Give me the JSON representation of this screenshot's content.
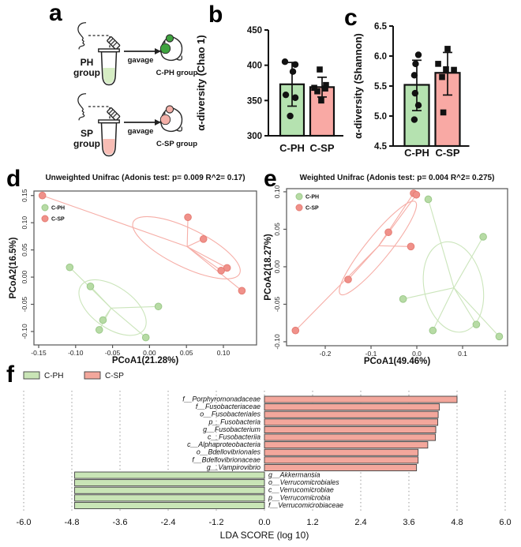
{
  "panels": {
    "a": {
      "label": "a",
      "rows": [
        {
          "sample": "PH",
          "sample_sub": "group",
          "arrow_label": "gavage",
          "result_label": "C-PH group",
          "liquid_color": "#d6edc4",
          "accent_color": "#3fa33f"
        },
        {
          "sample": "SP",
          "sample_sub": "group",
          "arrow_label": "gavage",
          "result_label": "C-SP group",
          "liquid_color": "#f8bdb5",
          "accent_color": "#f3b0a8"
        }
      ]
    },
    "b": {
      "label": "b"
    },
    "c": {
      "label": "c"
    },
    "d": {
      "label": "d"
    },
    "e": {
      "label": "e"
    },
    "f": {
      "label": "f"
    }
  },
  "chart_data": [
    {
      "panel": "b",
      "type": "bar",
      "title": "",
      "ylabel": "α-diversity (Chao 1)",
      "categories": [
        "C-PH",
        "C-SP"
      ],
      "ylim": [
        300,
        450
      ],
      "yticks": [
        "300",
        "350",
        "400",
        "450"
      ],
      "series": [
        {
          "name": "C-PH",
          "mean": 373,
          "err": [
            342,
            404
          ],
          "marker": "circle",
          "color": "#b5e2b0",
          "points": [
            405,
            401,
            391,
            358,
            354,
            328
          ],
          "jitter": [
            -0.6,
            0.27,
            0.07,
            -0.53,
            0.27,
            -0.16
          ]
        },
        {
          "name": "C-SP",
          "mean": 369,
          "err": [
            355,
            383
          ],
          "marker": "square",
          "color": "#f9a9a4",
          "points": [
            394,
            372,
            368,
            367,
            363,
            350
          ],
          "jitter": [
            -0.2,
            0.33,
            -0.66,
            0.27,
            -0.4,
            -0.07
          ]
        }
      ]
    },
    {
      "panel": "c",
      "type": "bar",
      "title": "",
      "ylabel": "α-diversity (Shannon)",
      "categories": [
        "C-PH",
        "C-SP"
      ],
      "ylim": [
        4.5,
        6.5
      ],
      "yticks": [
        "4.5",
        "5.0",
        "5.5",
        "6.0",
        "6.5"
      ],
      "series": [
        {
          "name": "C-PH",
          "mean": 5.52,
          "err": [
            5.09,
            5.93
          ],
          "marker": "circle",
          "color": "#b5e2b0",
          "points": [
            6.02,
            5.87,
            5.68,
            5.38,
            5.18,
            4.94
          ],
          "jitter": [
            0.13,
            -0.1,
            -0.2,
            -0.14,
            0.13,
            -0.2
          ]
        },
        {
          "name": "C-SP",
          "mean": 5.72,
          "err": [
            5.35,
            6.06
          ],
          "marker": "square",
          "color": "#f9a9a4",
          "points": [
            6.12,
            5.87,
            5.78,
            5.77,
            5.65,
            5.06
          ],
          "jitter": [
            0,
            -0.77,
            -0.13,
            0.52,
            -0.45,
            -0.35
          ]
        }
      ]
    },
    {
      "panel": "d",
      "type": "scatter",
      "title": "Unweighted Unifrac (Adonis test: p= 0.009  R^2= 0.17)",
      "xlabel": "PCoA1(21.28%)",
      "ylabel": "PCoA2(16.5%)",
      "xlim": [
        -0.1564,
        0.145
      ],
      "ylim": [
        -0.1247,
        0.158
      ],
      "xticks": [
        "-0.15",
        "-0.10",
        "-0.05",
        "0.00",
        "0.05",
        "0.10"
      ],
      "yticks": [
        "-0.10",
        "-0.05",
        "0.00",
        "0.05",
        "0.10",
        "0.15"
      ],
      "legend_position": "top-left",
      "groups": [
        {
          "name": "C-PH",
          "color": "#b7dba5",
          "stroke": "#9cc98a",
          "line_color": "#cbe5bb",
          "points": [
            [
              -0.108,
              0.018
            ],
            [
              -0.08,
              -0.017
            ],
            [
              0.012,
              -0.054
            ],
            [
              -0.063,
              -0.079
            ],
            [
              -0.068,
              -0.097
            ],
            [
              -0.005,
              -0.111
            ]
          ],
          "centroid": [
            -0.052,
            -0.057
          ],
          "ellipse": {
            "cx": -0.05,
            "cy": -0.056,
            "rx": 0.052,
            "ry": 0.028,
            "angle": 35
          }
        },
        {
          "name": "C-SP",
          "color": "#f0918a",
          "stroke": "#e57d74",
          "line_color": "#f6aea7",
          "points": [
            [
              -0.145,
              0.15
            ],
            [
              0.052,
              0.11
            ],
            [
              0.073,
              0.07
            ],
            [
              0.105,
              0.017
            ],
            [
              0.097,
              0.012
            ],
            [
              0.125,
              -0.025
            ]
          ],
          "centroid": [
            0.051,
            0.056
          ],
          "ellipse": {
            "cx": 0.05,
            "cy": 0.054,
            "rx": 0.08,
            "ry": 0.026,
            "angle": 26
          }
        }
      ]
    },
    {
      "panel": "e",
      "type": "scatter",
      "title": "Weighted Unifrac (Adonis test: p= 0.004  R^2= 0.275)",
      "xlabel": "PCoA1(49.46%)",
      "ylabel": "PCoA2(18.27%)",
      "xlim": [
        -0.2845,
        0.198
      ],
      "ylim": [
        -0.1053,
        0.1042
      ],
      "xticks": [
        "-0.2",
        "-0.1",
        "0.0",
        "0.1"
      ],
      "yticks": [
        "-0.10",
        "-0.05",
        "0.00",
        "0.05",
        "0.10"
      ],
      "legend_position": "top-left",
      "groups": [
        {
          "name": "C-PH",
          "color": "#b7dba5",
          "stroke": "#9cc98a",
          "line_color": "#cbe5bb",
          "points": [
            [
              0.025,
              0.09
            ],
            [
              0.145,
              0.04
            ],
            [
              -0.03,
              -0.043
            ],
            [
              0.13,
              -0.077
            ],
            [
              0.035,
              -0.085
            ],
            [
              0.18,
              -0.093
            ]
          ],
          "centroid": [
            0.081,
            -0.028
          ],
          "ellipse": {
            "cx": 0.08,
            "cy": -0.027,
            "rx": 0.1,
            "ry": 0.064,
            "angle": 78
          }
        },
        {
          "name": "C-SP",
          "color": "#f0918a",
          "stroke": "#e57d74",
          "line_color": "#f6aea7",
          "points": [
            [
              -0.007,
              0.098
            ],
            [
              -0.001,
              0.096
            ],
            [
              -0.062,
              0.046
            ],
            [
              -0.013,
              0.027
            ],
            [
              -0.15,
              -0.017
            ],
            [
              -0.265,
              -0.085
            ]
          ],
          "centroid": [
            -0.083,
            0.028
          ],
          "ellipse": {
            "cx": -0.085,
            "cy": 0.025,
            "rx": 0.13,
            "ry": 0.026,
            "angle": -51
          }
        }
      ]
    },
    {
      "panel": "f",
      "type": "bar",
      "orientation": "horizontal",
      "xlabel": "LDA SCORE (log 10)",
      "xlim": [
        -6.0,
        6.0
      ],
      "xticks": [
        "-6.0",
        "-4.8",
        "-3.6",
        "-2.4",
        "-1.2",
        "0.0",
        "1.2",
        "2.4",
        "3.6",
        "4.8",
        "6.0"
      ],
      "legend": [
        "C-PH",
        "C-SP"
      ],
      "colors": {
        "C-PH": "#c9e5b6",
        "C-SP": "#f3a79c"
      },
      "taxa": [
        {
          "name": "f__Porphyromonadaceae",
          "group": "C-SP",
          "value": 4.8
        },
        {
          "name": "f__Fusobacteriaceae",
          "group": "C-SP",
          "value": 4.36
        },
        {
          "name": "o__Fusobacteriales",
          "group": "C-SP",
          "value": 4.33
        },
        {
          "name": "p__Fusobacteria",
          "group": "C-SP",
          "value": 4.32
        },
        {
          "name": "g__Fusobacterium",
          "group": "C-SP",
          "value": 4.27
        },
        {
          "name": "c__Fusobacteriia",
          "group": "C-SP",
          "value": 4.26
        },
        {
          "name": "c__Alphaproteobacteria",
          "group": "C-SP",
          "value": 4.07
        },
        {
          "name": "o__Bdellovibrionales",
          "group": "C-SP",
          "value": 3.83
        },
        {
          "name": "f__Bdellovibrionaceae",
          "group": "C-SP",
          "value": 3.83
        },
        {
          "name": "g__Vampirovibrio",
          "group": "C-SP",
          "value": 3.79
        },
        {
          "name": "g__Akkermansia",
          "group": "C-PH",
          "value": -4.73
        },
        {
          "name": "o__Verrucomicrobiales",
          "group": "C-PH",
          "value": -4.73
        },
        {
          "name": "c__Verrucomicrobiae",
          "group": "C-PH",
          "value": -4.73
        },
        {
          "name": "p__Verrucomicrobia",
          "group": "C-PH",
          "value": -4.73
        },
        {
          "name": "f__Verrucomicrobiaceae",
          "group": "C-PH",
          "value": -4.73
        }
      ]
    }
  ]
}
